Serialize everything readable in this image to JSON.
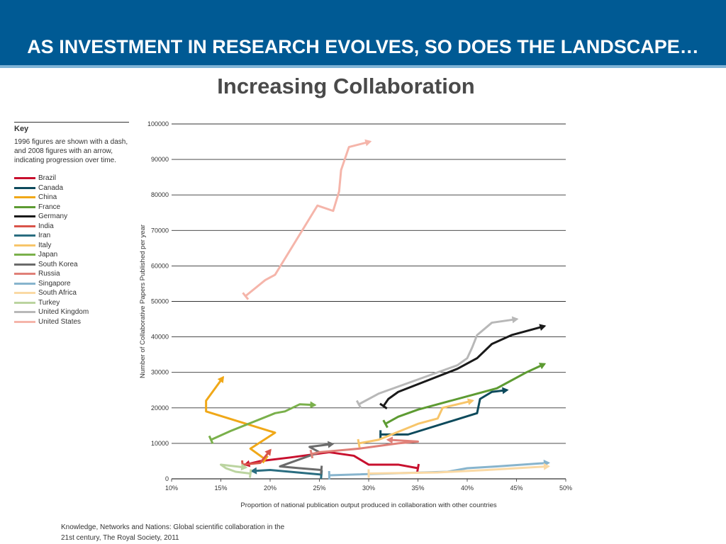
{
  "header": {
    "title": "AS INVESTMENT IN RESEARCH EVOLVES, SO DOES THE LANDSCAPE…"
  },
  "subtitle": "Increasing Collaboration",
  "key": {
    "heading": "Key",
    "description": "1996 figures are shown with a dash, and 2008 figures with an arrow, indicating progression over time."
  },
  "citation": {
    "line1": "Knowledge, Networks and Nations: Global scientific collaboration in the",
    "line2": "21st century, The Royal Society, 2011"
  },
  "chart_data": {
    "type": "line",
    "xlabel": "Proportion of national publication output produced in collaboration with other countries",
    "ylabel": "Number of Collaborative Papers Published per year",
    "xlim": [
      10,
      50
    ],
    "ylim": [
      0,
      100000
    ],
    "x_ticks": [
      "10%",
      "15%",
      "20%",
      "25%",
      "30%",
      "35%",
      "40%",
      "45%",
      "50%"
    ],
    "y_ticks": [
      "0",
      "10000",
      "20000",
      "30000",
      "40000",
      "50000",
      "60000",
      "70000",
      "80000",
      "90000",
      "100000"
    ],
    "grid": "horizontal",
    "legend": "left",
    "series": [
      {
        "name": "Brazil",
        "color": "#c8102e",
        "points": [
          [
            35,
            3000
          ],
          [
            33,
            4000
          ],
          [
            30,
            4000
          ],
          [
            28.5,
            6500
          ],
          [
            26,
            7500
          ],
          [
            22,
            6000
          ],
          [
            19,
            5000
          ],
          [
            17.5,
            4000
          ]
        ]
      },
      {
        "name": "Canada",
        "color": "#0d4a5c",
        "points": [
          [
            31.2,
            12500
          ],
          [
            34,
            12500
          ],
          [
            41,
            18500
          ],
          [
            41.3,
            22500
          ],
          [
            42.5,
            24500
          ],
          [
            44,
            25000
          ]
        ]
      },
      {
        "name": "China",
        "color": "#f0a818",
        "points": [
          [
            19.5,
            5500
          ],
          [
            18,
            8500
          ],
          [
            20.5,
            13000
          ],
          [
            13.5,
            19000
          ],
          [
            13.5,
            22000
          ],
          [
            15.2,
            28500
          ]
        ]
      },
      {
        "name": "France",
        "color": "#5d9b32",
        "points": [
          [
            31.7,
            15500
          ],
          [
            33,
            17500
          ],
          [
            35,
            19500
          ],
          [
            43,
            25500
          ],
          [
            46,
            30000
          ],
          [
            47.8,
            32300
          ]
        ]
      },
      {
        "name": "Germany",
        "color": "#1a1a1a",
        "points": [
          [
            31.5,
            20500
          ],
          [
            32,
            22500
          ],
          [
            33,
            24500
          ],
          [
            39,
            31000
          ],
          [
            41,
            34000
          ],
          [
            42.5,
            38000
          ],
          [
            44.5,
            40500
          ],
          [
            47.8,
            43000
          ]
        ]
      },
      {
        "name": "India",
        "color": "#d9544a",
        "points": [
          [
            17.2,
            4000
          ],
          [
            19,
            4500
          ],
          [
            20,
            8000
          ]
        ]
      },
      {
        "name": "Iran",
        "color": "#2a6d80",
        "points": [
          [
            25.2,
            1200
          ],
          [
            20,
            2500
          ],
          [
            18.2,
            2200
          ]
        ]
      },
      {
        "name": "Italy",
        "color": "#f7c56a",
        "points": [
          [
            29,
            10000
          ],
          [
            31,
            11000
          ],
          [
            35,
            15500
          ],
          [
            37,
            17000
          ],
          [
            37.5,
            20000
          ],
          [
            40.5,
            22000
          ]
        ]
      },
      {
        "name": "Japan",
        "color": "#7ab04b",
        "points": [
          [
            14,
            11000
          ],
          [
            16,
            13500
          ],
          [
            20.5,
            18500
          ],
          [
            21.5,
            19000
          ],
          [
            23,
            21000
          ],
          [
            24.5,
            20800
          ]
        ]
      },
      {
        "name": "South Korea",
        "color": "#6b6b6b",
        "points": [
          [
            25.2,
            2500
          ],
          [
            23,
            3000
          ],
          [
            21,
            3500
          ],
          [
            25,
            7500
          ],
          [
            24,
            9000
          ],
          [
            26.3,
            9800
          ]
        ]
      },
      {
        "name": "Russia",
        "color": "#e08078",
        "points": [
          [
            24.2,
            7000
          ],
          [
            25,
            7500
          ],
          [
            29,
            8500
          ],
          [
            33,
            10000
          ],
          [
            35,
            10500
          ],
          [
            32,
            11000
          ]
        ]
      },
      {
        "name": "Singapore",
        "color": "#87b4cd",
        "points": [
          [
            26,
            1000
          ],
          [
            38,
            2000
          ],
          [
            40,
            3000
          ],
          [
            43,
            3500
          ],
          [
            48.2,
            4500
          ]
        ]
      },
      {
        "name": "South Africa",
        "color": "#fad9a4",
        "points": [
          [
            30,
            1500
          ],
          [
            37,
            1800
          ],
          [
            42,
            2500
          ],
          [
            45,
            3000
          ],
          [
            48.2,
            3500
          ]
        ]
      },
      {
        "name": "Turkey",
        "color": "#bbd4a0",
        "points": [
          [
            18,
            1500
          ],
          [
            16.5,
            2000
          ],
          [
            15.5,
            3000
          ],
          [
            15,
            4000
          ],
          [
            17.5,
            3200
          ]
        ]
      },
      {
        "name": "United Kingdom",
        "color": "#b8b8b8",
        "points": [
          [
            29,
            21000
          ],
          [
            31,
            24000
          ],
          [
            34,
            27000
          ],
          [
            39,
            32000
          ],
          [
            40,
            34000
          ],
          [
            40.5,
            37000
          ],
          [
            41,
            40500
          ],
          [
            42.5,
            44000
          ],
          [
            45,
            45000
          ]
        ]
      },
      {
        "name": "United States",
        "color": "#f5b5aa",
        "points": [
          [
            17.5,
            51500
          ],
          [
            19.5,
            56000
          ],
          [
            20.5,
            57500
          ],
          [
            24.8,
            77000
          ],
          [
            26.4,
            75500
          ],
          [
            27,
            81000
          ],
          [
            27.2,
            87000
          ],
          [
            28,
            93500
          ],
          [
            30.1,
            95000
          ]
        ]
      }
    ]
  }
}
